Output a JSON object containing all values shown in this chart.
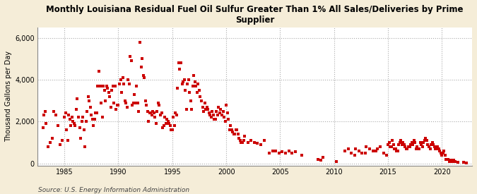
{
  "title": "Monthly Louisiana Residual Fuel Oil Sulfur Greater Than 1% All Sales/Deliveries by Prime\nSupplier",
  "ylabel": "Thousand Gallons per Day",
  "source": "Source: U.S. Energy Information Administration",
  "fig_bg_color": "#f5edd8",
  "plot_bg_color": "#ffffff",
  "dot_color": "#cc0000",
  "dot_size": 5,
  "xlim": [
    1982.5,
    2022.8
  ],
  "ylim": [
    -100,
    6500
  ],
  "yticks": [
    0,
    2000,
    4000,
    6000
  ],
  "ytick_labels": [
    "0",
    "2,000",
    "4,000",
    "6,000"
  ],
  "xticks": [
    1985,
    1990,
    1995,
    2000,
    2005,
    2010,
    2015,
    2020
  ],
  "data_x": [
    1983.0,
    1983.1,
    1983.2,
    1983.3,
    1983.5,
    1983.7,
    1983.9,
    1984.0,
    1984.2,
    1984.4,
    1984.6,
    1984.8,
    1985.0,
    1985.1,
    1985.2,
    1985.3,
    1985.4,
    1985.5,
    1985.6,
    1985.7,
    1985.8,
    1985.9,
    1986.0,
    1986.1,
    1986.2,
    1986.3,
    1986.4,
    1986.5,
    1986.6,
    1986.7,
    1986.8,
    1986.9,
    1987.0,
    1987.1,
    1987.2,
    1987.3,
    1987.4,
    1987.5,
    1987.6,
    1987.7,
    1987.8,
    1987.9,
    1988.0,
    1988.1,
    1988.2,
    1988.3,
    1988.4,
    1988.5,
    1988.6,
    1988.7,
    1988.8,
    1988.9,
    1989.0,
    1989.1,
    1989.2,
    1989.3,
    1989.4,
    1989.5,
    1989.6,
    1989.7,
    1989.8,
    1989.9,
    1990.0,
    1990.1,
    1990.2,
    1990.3,
    1990.4,
    1990.5,
    1990.6,
    1990.7,
    1990.8,
    1990.9,
    1991.0,
    1991.1,
    1991.2,
    1991.3,
    1991.4,
    1991.5,
    1991.6,
    1991.7,
    1991.8,
    1991.9,
    1992.0,
    1992.1,
    1992.2,
    1992.3,
    1992.4,
    1992.5,
    1992.6,
    1992.7,
    1992.8,
    1992.9,
    1993.0,
    1993.1,
    1993.2,
    1993.3,
    1993.4,
    1993.5,
    1993.6,
    1993.7,
    1993.8,
    1993.9,
    1994.0,
    1994.1,
    1994.2,
    1994.3,
    1994.4,
    1994.5,
    1994.6,
    1994.7,
    1994.8,
    1994.9,
    1995.0,
    1995.1,
    1995.2,
    1995.3,
    1995.4,
    1995.5,
    1995.6,
    1995.7,
    1995.8,
    1995.9,
    1996.0,
    1996.1,
    1996.2,
    1996.3,
    1996.4,
    1996.5,
    1996.6,
    1996.7,
    1996.8,
    1996.9,
    1997.0,
    1997.1,
    1997.2,
    1997.3,
    1997.4,
    1997.5,
    1997.6,
    1997.7,
    1997.8,
    1997.9,
    1998.0,
    1998.1,
    1998.2,
    1998.3,
    1998.4,
    1998.5,
    1998.6,
    1998.7,
    1998.8,
    1998.9,
    1999.0,
    1999.1,
    1999.2,
    1999.3,
    1999.4,
    1999.5,
    1999.6,
    1999.7,
    1999.8,
    1999.9,
    2000.0,
    2000.1,
    2000.2,
    2000.3,
    2000.4,
    2000.5,
    2000.6,
    2000.7,
    2000.8,
    2000.9,
    2001.0,
    2001.1,
    2001.2,
    2001.3,
    2001.4,
    2001.5,
    2001.6,
    2001.7,
    2002.0,
    2002.3,
    2002.6,
    2002.9,
    2003.2,
    2003.5,
    2004.0,
    2004.3,
    2004.6,
    2004.9,
    2005.2,
    2005.5,
    2005.8,
    2006.1,
    2006.4,
    2007.0,
    2008.5,
    2008.8,
    2009.0,
    2010.2,
    2011.0,
    2011.3,
    2011.6,
    2011.9,
    2012.0,
    2012.3,
    2012.6,
    2012.9,
    2013.0,
    2013.3,
    2013.6,
    2013.9,
    2014.0,
    2014.3,
    2014.6,
    2014.9,
    2015.0,
    2015.1,
    2015.2,
    2015.3,
    2015.4,
    2015.5,
    2015.6,
    2015.7,
    2015.8,
    2015.9,
    2016.0,
    2016.1,
    2016.2,
    2016.3,
    2016.4,
    2016.5,
    2016.6,
    2016.7,
    2016.8,
    2016.9,
    2017.0,
    2017.1,
    2017.2,
    2017.3,
    2017.4,
    2017.5,
    2017.6,
    2017.7,
    2017.8,
    2017.9,
    2018.0,
    2018.1,
    2018.2,
    2018.3,
    2018.4,
    2018.5,
    2018.6,
    2018.7,
    2018.8,
    2018.9,
    2019.0,
    2019.1,
    2019.2,
    2019.3,
    2019.4,
    2019.5,
    2019.6,
    2019.7,
    2019.8,
    2019.9,
    2020.0,
    2020.1,
    2020.2,
    2020.3,
    2020.4,
    2020.5,
    2020.6,
    2020.7,
    2020.8,
    2020.9,
    2021.0,
    2021.1,
    2021.2,
    2021.5,
    2022.0,
    2022.3
  ],
  "data_y": [
    1700,
    2300,
    2500,
    1900,
    800,
    1000,
    1200,
    2500,
    2300,
    1800,
    900,
    1100,
    2200,
    2400,
    1600,
    1100,
    2300,
    2100,
    1800,
    2200,
    2000,
    1900,
    1800,
    2600,
    3100,
    2200,
    1700,
    1200,
    2000,
    2200,
    1600,
    800,
    2000,
    2500,
    3200,
    3000,
    2700,
    2300,
    2100,
    1800,
    2100,
    2400,
    2400,
    3700,
    4400,
    3700,
    2900,
    2200,
    3700,
    3500,
    3000,
    3700,
    3600,
    3400,
    3200,
    2700,
    3500,
    3700,
    2900,
    3700,
    2600,
    2800,
    2800,
    3800,
    4000,
    3400,
    4100,
    3800,
    3000,
    2900,
    2700,
    4000,
    3800,
    5100,
    4900,
    2800,
    2900,
    3300,
    2900,
    3700,
    2900,
    2500,
    5800,
    4600,
    5000,
    4200,
    4100,
    3000,
    2800,
    2500,
    2000,
    2400,
    2400,
    2300,
    2500,
    2400,
    2200,
    1900,
    2500,
    2900,
    2800,
    2300,
    2400,
    1700,
    1800,
    2200,
    1900,
    2100,
    2000,
    1900,
    1800,
    1600,
    1600,
    2200,
    1800,
    2400,
    2300,
    3600,
    4800,
    4500,
    4800,
    3800,
    3900,
    4000,
    3500,
    2600,
    3800,
    4000,
    3400,
    3000,
    2600,
    3700,
    4200,
    3900,
    3700,
    3400,
    3800,
    3500,
    3200,
    3000,
    2700,
    2500,
    2900,
    2600,
    2700,
    2600,
    2400,
    2300,
    2200,
    2500,
    2300,
    2100,
    2100,
    2500,
    2300,
    2700,
    2400,
    2600,
    2300,
    2500,
    2200,
    2000,
    2800,
    2400,
    2100,
    1600,
    1800,
    1600,
    1500,
    1400,
    1400,
    1600,
    1600,
    1400,
    1200,
    1100,
    1000,
    1000,
    1100,
    1300,
    1000,
    1100,
    1000,
    950,
    900,
    1100,
    500,
    600,
    600,
    500,
    550,
    500,
    600,
    500,
    550,
    400,
    200,
    150,
    300,
    100,
    600,
    700,
    500,
    400,
    700,
    600,
    500,
    500,
    800,
    700,
    600,
    600,
    700,
    800,
    500,
    400,
    900,
    1000,
    800,
    800,
    1100,
    900,
    700,
    700,
    600,
    600,
    900,
    1000,
    1100,
    900,
    1000,
    900,
    800,
    700,
    700,
    800,
    800,
    900,
    1000,
    900,
    1100,
    1000,
    700,
    800,
    700,
    700,
    1000,
    900,
    800,
    1000,
    1100,
    1200,
    1100,
    900,
    800,
    700,
    900,
    1000,
    900,
    800,
    700,
    700,
    800,
    700,
    600,
    500,
    400,
    500,
    600,
    400,
    200,
    200,
    200,
    100,
    150,
    100,
    100,
    150,
    100,
    50,
    50,
    30
  ]
}
